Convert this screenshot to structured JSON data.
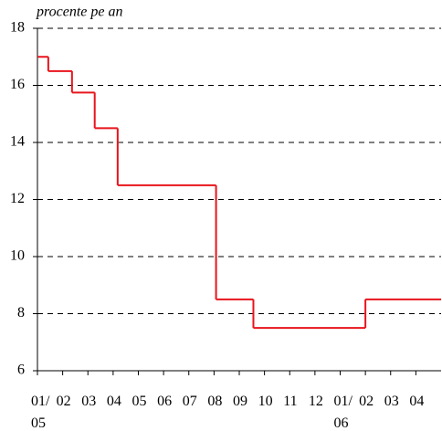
{
  "chart_data": {
    "type": "step",
    "y_label": "procente pe an",
    "x": [
      0,
      0.43,
      1.37,
      2.27,
      3.18,
      7.08,
      8.56,
      13
    ],
    "values": [
      17,
      16.5,
      15.75,
      14.5,
      12.5,
      8.5,
      7.5,
      8.5
    ],
    "color": "#e8141c",
    "xlim": [
      0,
      16
    ],
    "xticks": [
      {
        "value": 0,
        "label": "01/ 05"
      },
      {
        "value": 1,
        "label": "02"
      },
      {
        "value": 2,
        "label": "03"
      },
      {
        "value": 3,
        "label": "04"
      },
      {
        "value": 4,
        "label": "05"
      },
      {
        "value": 5,
        "label": "06"
      },
      {
        "value": 6,
        "label": "07"
      },
      {
        "value": 7,
        "label": "08"
      },
      {
        "value": 8,
        "label": "09"
      },
      {
        "value": 9,
        "label": "10"
      },
      {
        "value": 10,
        "label": "11"
      },
      {
        "value": 11,
        "label": "12"
      },
      {
        "value": 12,
        "label": "01/ 06"
      },
      {
        "value": 13,
        "label": "02"
      },
      {
        "value": 14,
        "label": "03"
      },
      {
        "value": 15,
        "label": "04"
      }
    ],
    "ylim": [
      6,
      18
    ],
    "yticks": [
      6,
      8,
      10,
      12,
      14,
      16,
      18
    ],
    "grid": true
  }
}
